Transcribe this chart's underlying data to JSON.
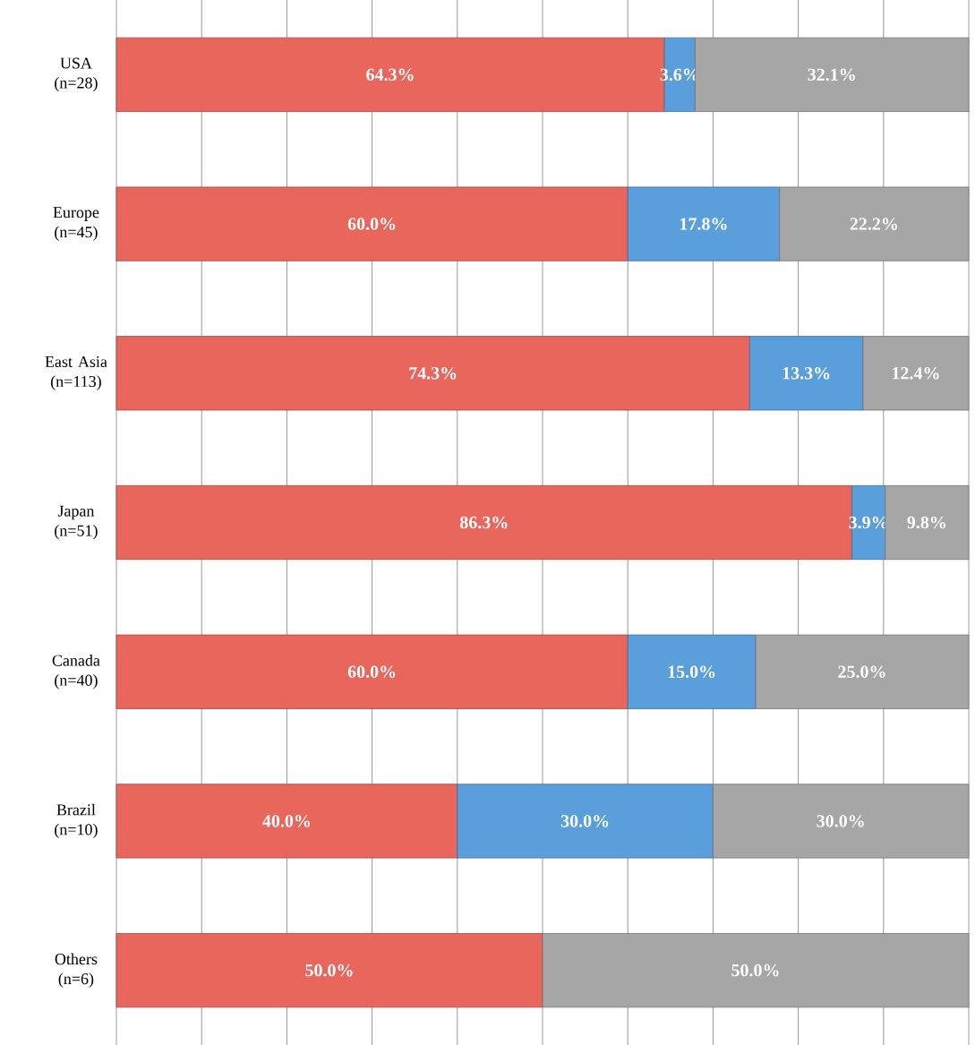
{
  "chart_data": {
    "type": "bar",
    "orientation": "horizontal",
    "stacked": true,
    "categories": [
      "USA (n=28)",
      "Europe (n=45)",
      "East Asia (n=113)",
      "Japan (n=51)",
      "Canada (n=40)",
      "Brazil (n=10)",
      "Others (n=6)"
    ],
    "xlim": [
      0,
      100
    ],
    "xticks": [
      {
        "value": 0,
        "label": null
      },
      {
        "value": 10,
        "label": null
      },
      {
        "value": 20,
        "label": null
      },
      {
        "value": 30,
        "label": null
      },
      {
        "value": 40,
        "label": null
      },
      {
        "value": 50,
        "label": null
      },
      {
        "value": 60,
        "label": null
      },
      {
        "value": 70,
        "label": null
      },
      {
        "value": 80,
        "label": null
      },
      {
        "value": 90,
        "label": null
      },
      {
        "value": 100,
        "label": null
      }
    ],
    "tick_labels": "y",
    "grid": "x",
    "series": [
      {
        "color": "#e8665c",
        "values": [
          64.3,
          60.0,
          74.3,
          86.3,
          60.0,
          40.0,
          50.0
        ],
        "value_labels": [
          "64.3%",
          "60.0%",
          "74.3%",
          "86.3%",
          "60.0%",
          "40.0%",
          "50.0%"
        ]
      },
      {
        "color": "#5a9fdc",
        "values": [
          3.6,
          17.8,
          13.3,
          3.9,
          15.0,
          30.0,
          null
        ],
        "value_labels": [
          "3.6%",
          "17.8%",
          "13.3%",
          "3.9%",
          "15.0%",
          "30.0%",
          null
        ]
      },
      {
        "color": "#a6a6a6",
        "values": [
          32.1,
          22.2,
          12.4,
          9.8,
          25.0,
          30.0,
          50.0
        ],
        "value_labels": [
          "32.1%",
          "22.2%",
          "12.4%",
          "9.8%",
          "25.0%",
          "30.0%",
          "50.0%"
        ]
      }
    ]
  }
}
